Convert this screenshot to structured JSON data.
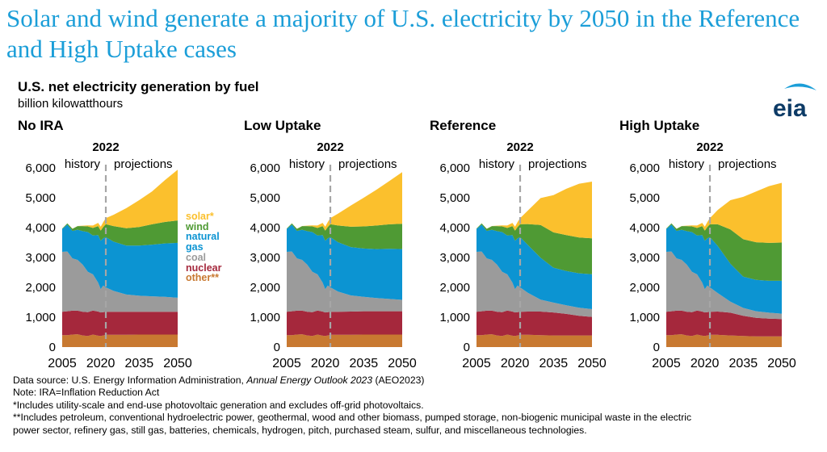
{
  "headline": "Solar and wind generate a majority of U.S. electricity by 2050 in the Reference and High Uptake cases",
  "subtitle": "U.S. net electricity generation by fuel",
  "units": "billion kilowatthours",
  "logo_text": "eia",
  "colors": {
    "solar": "#fbc02d",
    "wind": "#4f9a34",
    "natural_gas": "#0c94d2",
    "coal": "#9b9b9b",
    "nuclear": "#a5283c",
    "other": "#c87931",
    "headline": "#1b9ed8",
    "divider": "#a6a6a6"
  },
  "legend": [
    {
      "key": "solar",
      "label": "solar*"
    },
    {
      "key": "wind",
      "label": "wind"
    },
    {
      "key": "natural_gas",
      "label": "natural"
    },
    {
      "key": "natural_gas",
      "label": "gas"
    },
    {
      "key": "coal",
      "label": "coal"
    },
    {
      "key": "nuclear",
      "label": "nuclear"
    },
    {
      "key": "other",
      "label": "other**"
    }
  ],
  "chart_data": [
    {
      "type": "area",
      "title": "No IRA",
      "divider_year": "2022",
      "history_label": "history",
      "projections_label": "projections",
      "x_ticks": [
        "2005",
        "2020",
        "2035",
        "2050"
      ],
      "y_ticks": [
        "0",
        "1,000",
        "2,000",
        "3,000",
        "4,000",
        "5,000",
        "6,000"
      ],
      "ylim": [
        0,
        6000
      ],
      "xlim": [
        2005,
        2050
      ],
      "x": [
        2005,
        2007,
        2009,
        2011,
        2013,
        2015,
        2017,
        2019,
        2020,
        2021,
        2022,
        2025,
        2030,
        2035,
        2040,
        2045,
        2050
      ],
      "series": [
        {
          "key": "other",
          "values": [
            400,
            400,
            420,
            430,
            390,
            370,
            420,
            380,
            370,
            390,
            410,
            410,
            410,
            420,
            420,
            420,
            420
          ]
        },
        {
          "key": "nuclear",
          "values": [
            780,
            800,
            800,
            790,
            790,
            800,
            805,
            810,
            790,
            780,
            770,
            770,
            770,
            760,
            760,
            760,
            760
          ]
        },
        {
          "key": "coal",
          "values": [
            2010,
            2000,
            1750,
            1700,
            1580,
            1350,
            1210,
            970,
            780,
            890,
            820,
            700,
            580,
            540,
            520,
            500,
            470
          ]
        },
        {
          "key": "natural_gas",
          "values": [
            760,
            900,
            920,
            1010,
            1120,
            1330,
            1300,
            1590,
            1620,
            1580,
            1680,
            1650,
            1640,
            1680,
            1730,
            1790,
            1840
          ]
        },
        {
          "key": "wind",
          "values": [
            20,
            40,
            70,
            120,
            170,
            190,
            255,
            300,
            340,
            380,
            435,
            520,
            580,
            620,
            680,
            720,
            750
          ]
        },
        {
          "key": "solar",
          "values": [
            0,
            0,
            1,
            5,
            15,
            35,
            80,
            110,
            130,
            160,
            200,
            380,
            670,
            900,
            1100,
            1400,
            1700
          ]
        }
      ]
    },
    {
      "type": "area",
      "title": "Low Uptake",
      "divider_year": "2022",
      "history_label": "history",
      "projections_label": "projections",
      "x_ticks": [
        "2005",
        "2020",
        "2035",
        "2050"
      ],
      "y_ticks": [
        "0",
        "1,000",
        "2,000",
        "3,000",
        "4,000",
        "5,000",
        "6,000"
      ],
      "ylim": [
        0,
        6000
      ],
      "xlim": [
        2005,
        2050
      ],
      "x": [
        2005,
        2007,
        2009,
        2011,
        2013,
        2015,
        2017,
        2019,
        2020,
        2021,
        2022,
        2025,
        2030,
        2035,
        2040,
        2045,
        2050
      ],
      "series": [
        {
          "key": "other",
          "values": [
            400,
            400,
            420,
            430,
            390,
            370,
            420,
            380,
            370,
            390,
            410,
            410,
            410,
            420,
            420,
            420,
            420
          ]
        },
        {
          "key": "nuclear",
          "values": [
            780,
            800,
            800,
            790,
            790,
            800,
            805,
            810,
            790,
            780,
            770,
            770,
            780,
            780,
            780,
            780,
            780
          ]
        },
        {
          "key": "coal",
          "values": [
            2010,
            2000,
            1750,
            1700,
            1580,
            1350,
            1210,
            970,
            780,
            890,
            820,
            680,
            540,
            480,
            440,
            410,
            380
          ]
        },
        {
          "key": "natural_gas",
          "values": [
            760,
            900,
            920,
            1010,
            1120,
            1330,
            1300,
            1590,
            1620,
            1580,
            1680,
            1650,
            1620,
            1620,
            1640,
            1680,
            1700
          ]
        },
        {
          "key": "wind",
          "values": [
            20,
            40,
            70,
            120,
            170,
            190,
            255,
            300,
            340,
            380,
            435,
            560,
            680,
            740,
            790,
            820,
            850
          ]
        },
        {
          "key": "solar",
          "values": [
            0,
            0,
            1,
            5,
            15,
            35,
            80,
            110,
            130,
            160,
            200,
            400,
            710,
            960,
            1200,
            1450,
            1730
          ]
        }
      ]
    },
    {
      "type": "area",
      "title": "Reference",
      "divider_year": "2022",
      "history_label": "history",
      "projections_label": "projections",
      "x_ticks": [
        "2005",
        "2020",
        "2035",
        "2050"
      ],
      "y_ticks": [
        "0",
        "1,000",
        "2,000",
        "3,000",
        "4,000",
        "5,000",
        "6,000"
      ],
      "ylim": [
        0,
        6000
      ],
      "xlim": [
        2005,
        2050
      ],
      "x": [
        2005,
        2007,
        2009,
        2011,
        2013,
        2015,
        2017,
        2019,
        2020,
        2021,
        2022,
        2025,
        2030,
        2035,
        2040,
        2045,
        2050
      ],
      "series": [
        {
          "key": "other",
          "values": [
            400,
            400,
            420,
            430,
            390,
            370,
            420,
            380,
            370,
            390,
            410,
            410,
            400,
            390,
            390,
            390,
            390
          ]
        },
        {
          "key": "nuclear",
          "values": [
            780,
            800,
            800,
            790,
            790,
            800,
            805,
            810,
            790,
            780,
            770,
            780,
            790,
            770,
            720,
            660,
            620
          ]
        },
        {
          "key": "coal",
          "values": [
            2010,
            2000,
            1750,
            1700,
            1580,
            1350,
            1210,
            970,
            780,
            890,
            820,
            630,
            400,
            330,
            290,
            270,
            260
          ]
        },
        {
          "key": "natural_gas",
          "values": [
            760,
            900,
            920,
            1010,
            1120,
            1330,
            1300,
            1590,
            1620,
            1580,
            1680,
            1600,
            1400,
            1170,
            1150,
            1150,
            1170
          ]
        },
        {
          "key": "wind",
          "values": [
            20,
            40,
            70,
            120,
            170,
            190,
            255,
            300,
            340,
            380,
            435,
            700,
            1100,
            1180,
            1200,
            1200,
            1200
          ]
        },
        {
          "key": "solar",
          "values": [
            0,
            0,
            1,
            5,
            15,
            35,
            80,
            110,
            130,
            160,
            200,
            450,
            900,
            1250,
            1550,
            1800,
            1900
          ]
        }
      ]
    },
    {
      "type": "area",
      "title": "High Uptake",
      "divider_year": "2022",
      "history_label": "history",
      "projections_label": "projections",
      "x_ticks": [
        "2005",
        "2020",
        "2035",
        "2050"
      ],
      "y_ticks": [
        "0",
        "1,000",
        "2,000",
        "3,000",
        "4,000",
        "5,000",
        "6,000"
      ],
      "ylim": [
        0,
        6000
      ],
      "xlim": [
        2005,
        2050
      ],
      "x": [
        2005,
        2007,
        2009,
        2011,
        2013,
        2015,
        2017,
        2019,
        2020,
        2021,
        2022,
        2025,
        2030,
        2035,
        2040,
        2045,
        2050
      ],
      "series": [
        {
          "key": "other",
          "values": [
            400,
            400,
            420,
            430,
            390,
            370,
            420,
            380,
            370,
            390,
            410,
            410,
            390,
            370,
            360,
            360,
            360
          ]
        },
        {
          "key": "nuclear",
          "values": [
            780,
            800,
            800,
            790,
            790,
            800,
            805,
            810,
            790,
            780,
            770,
            780,
            760,
            680,
            620,
            590,
            580
          ]
        },
        {
          "key": "coal",
          "values": [
            2010,
            2000,
            1750,
            1700,
            1580,
            1350,
            1210,
            970,
            780,
            890,
            820,
            620,
            370,
            260,
            220,
            200,
            180
          ]
        },
        {
          "key": "natural_gas",
          "values": [
            760,
            900,
            920,
            1010,
            1120,
            1330,
            1300,
            1590,
            1620,
            1580,
            1680,
            1580,
            1270,
            1050,
            1050,
            1070,
            1100
          ]
        },
        {
          "key": "wind",
          "values": [
            20,
            40,
            70,
            120,
            170,
            190,
            255,
            300,
            340,
            380,
            435,
            720,
            1150,
            1250,
            1260,
            1270,
            1280
          ]
        },
        {
          "key": "solar",
          "values": [
            0,
            0,
            1,
            5,
            15,
            35,
            80,
            110,
            130,
            160,
            200,
            480,
            980,
            1420,
            1700,
            1900,
            2000
          ]
        }
      ]
    }
  ],
  "notes": {
    "source_prefix": "Data source: U.S. Energy Information Administration, ",
    "source_title": "Annual Energy Outlook 2023",
    "source_suffix": " (AEO2023)",
    "note_ira": "Note: IRA=Inflation Reduction Act",
    "note_solar": "*Includes utility-scale and end-use photovoltaic generation and excludes off-grid photovoltaics.",
    "note_other_line1": "**Includes petroleum, conventional hydroelectric power, geothermal, wood and other biomass, pumped storage, non-biogenic municipal waste in the electric",
    "note_other_line2": "power sector, refinery gas, still gas, batteries, chemicals, hydrogen, pitch, purchased steam, sulfur, and miscellaneous technologies."
  }
}
